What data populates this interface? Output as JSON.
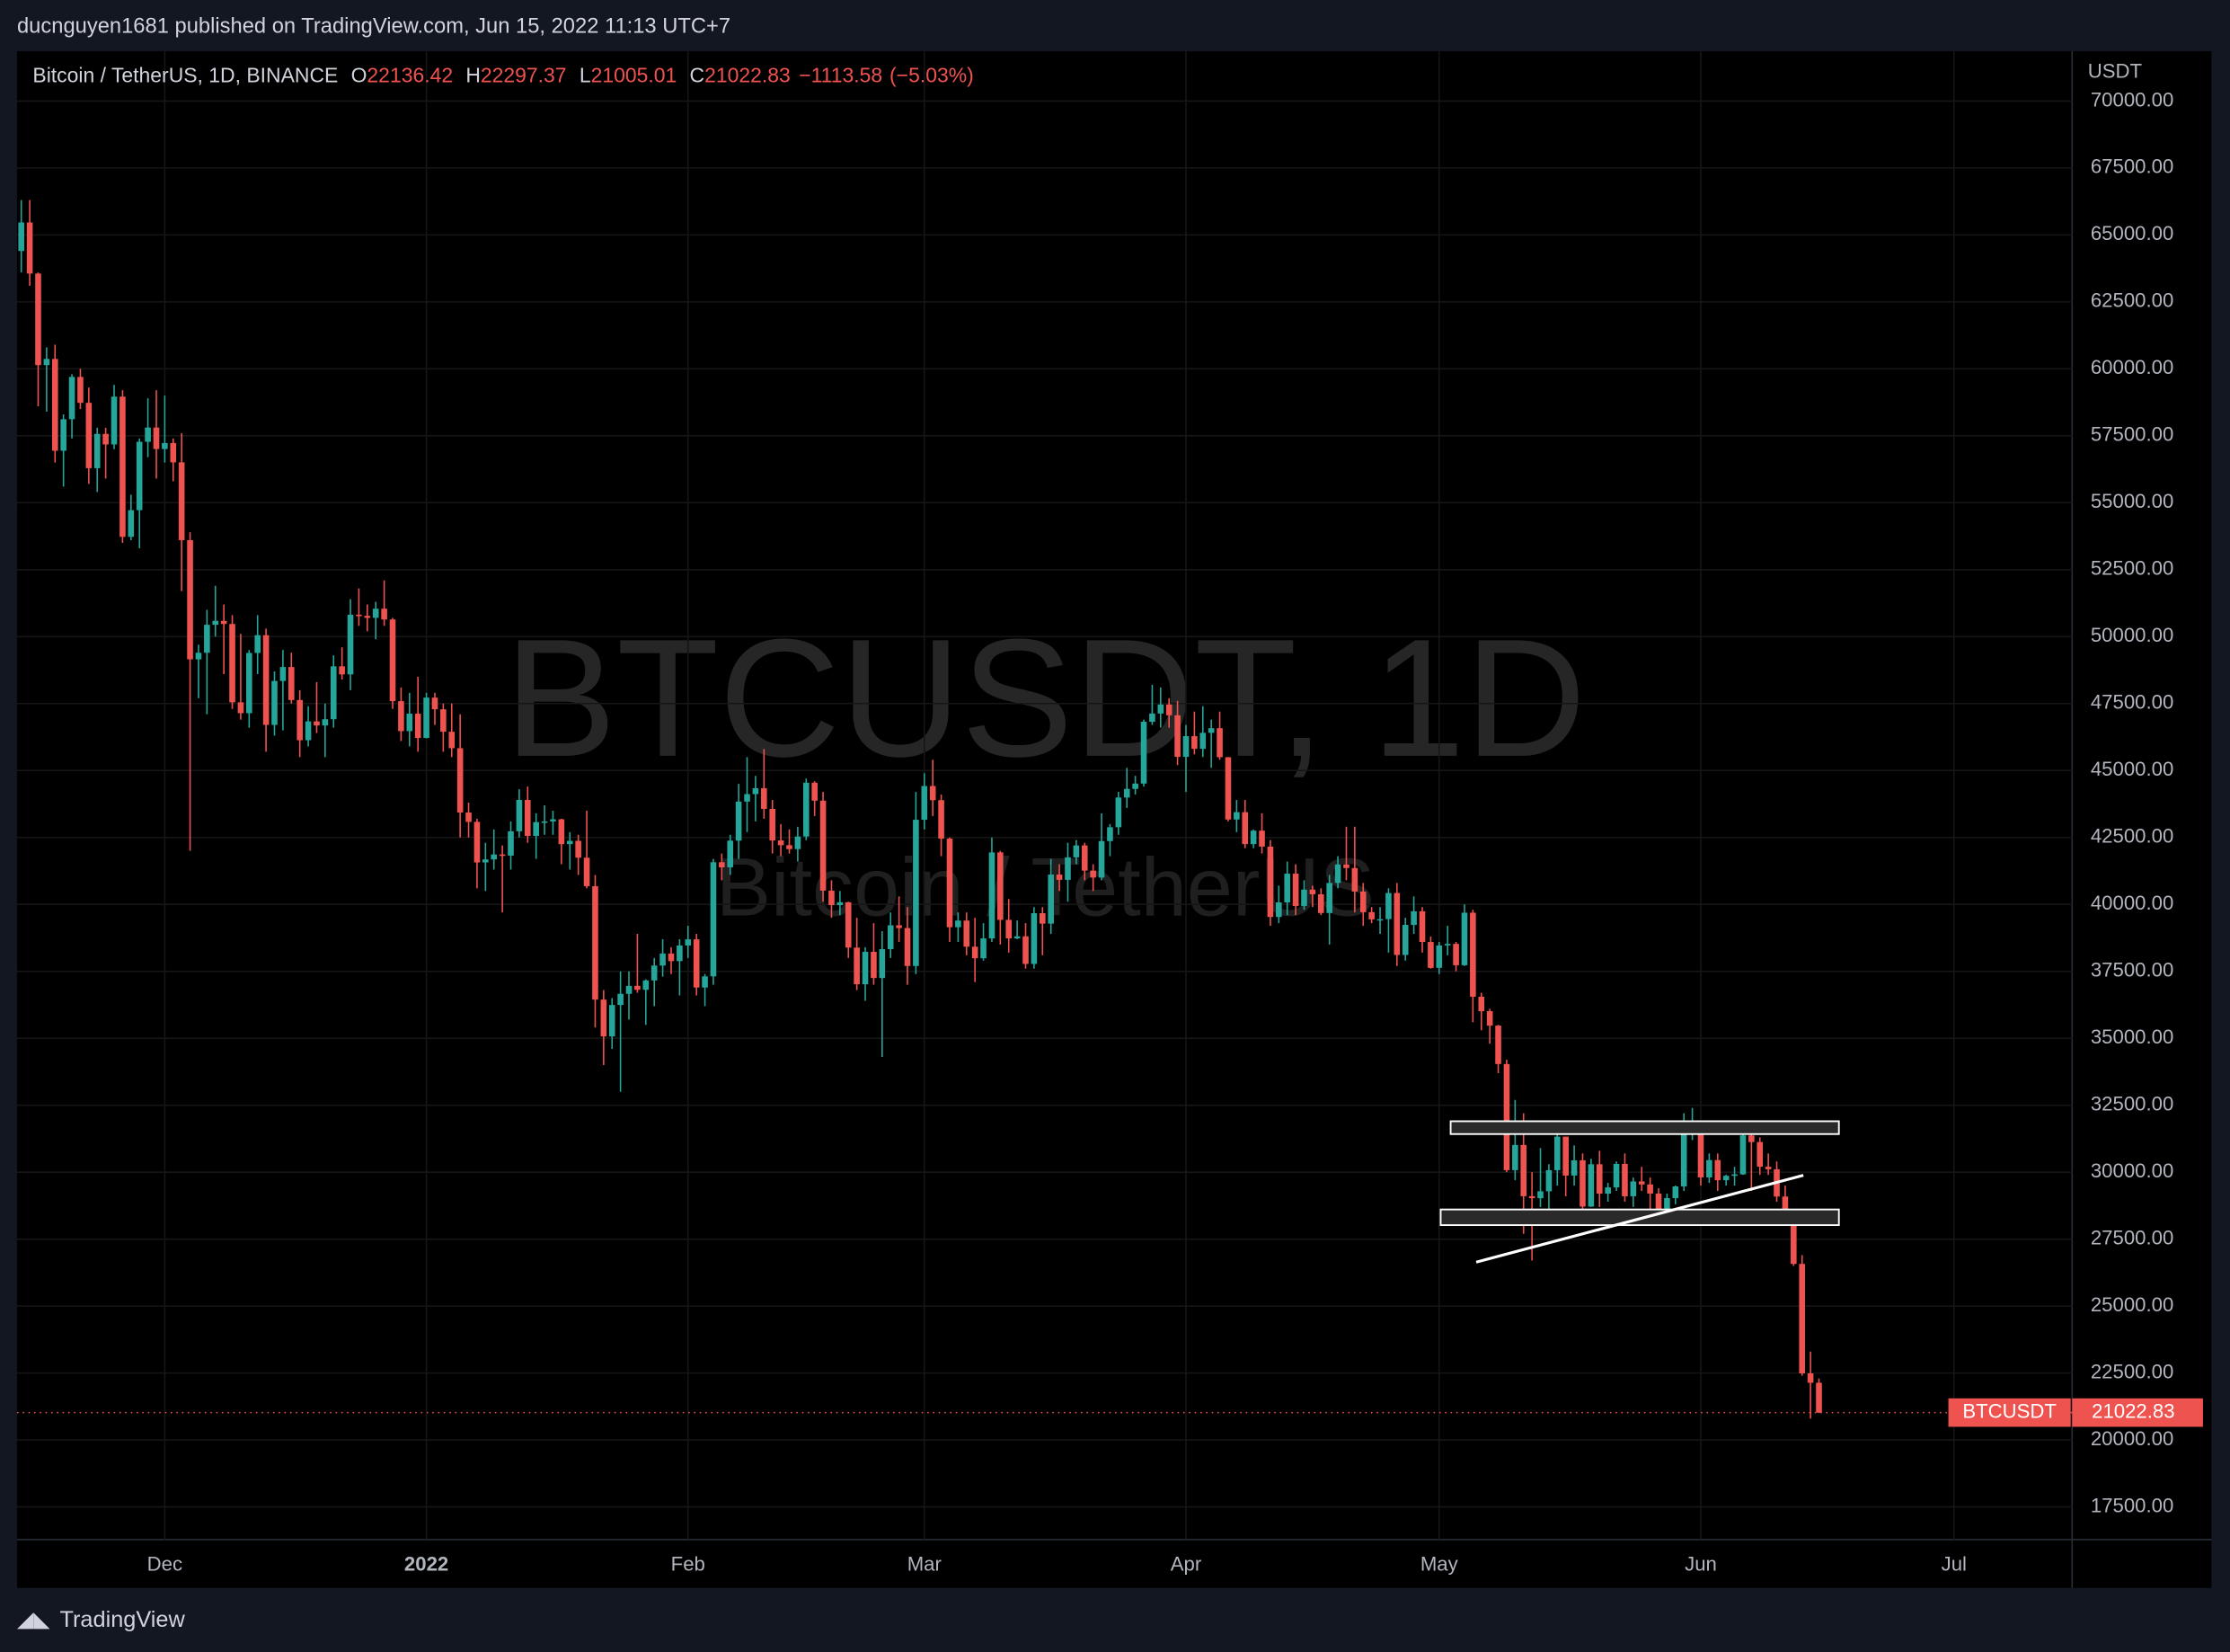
{
  "header": {
    "published": "ducnguyen1681 published on TradingView.com, Jun 15, 2022 11:13 UTC+7",
    "symbol": "Bitcoin / TetherUS, 1D, BINANCE",
    "ohlc_keys": [
      "O",
      "H",
      "L",
      "C"
    ],
    "change": "−1113.58",
    "change_pct": "(−5.03%)"
  },
  "footer": {
    "brand": "TradingView"
  },
  "chart_data": {
    "type": "candlestick",
    "watermark": "BTCUSDT, 1D",
    "watermark_sub": "Bitcoin / TetherUS",
    "y_unit": "USDT",
    "last_price_name": "BTCUSDT",
    "up_color": "#26a69a",
    "down_color": "#ef5350",
    "grid": true,
    "xlim": [
      -0.5,
      243
    ],
    "ylim": [
      16280,
      71860
    ],
    "xticks": [
      {
        "value": 17,
        "label": "Dec"
      },
      {
        "value": 48,
        "label": "2022"
      },
      {
        "value": 79,
        "label": "Feb"
      },
      {
        "value": 107,
        "label": "Mar"
      },
      {
        "value": 138,
        "label": "Apr"
      },
      {
        "value": 168,
        "label": "May"
      },
      {
        "value": 199,
        "label": "Jun"
      },
      {
        "value": 229,
        "label": "Jul"
      }
    ],
    "yticks": [
      {
        "value": 17500,
        "label": "17500.00"
      },
      {
        "value": 20000,
        "label": "20000.00"
      },
      {
        "value": 22500,
        "label": "22500.00"
      },
      {
        "value": 25000,
        "label": "25000.00"
      },
      {
        "value": 27500,
        "label": "27500.00"
      },
      {
        "value": 30000,
        "label": "30000.00"
      },
      {
        "value": 32500,
        "label": "32500.00"
      },
      {
        "value": 35000,
        "label": "35000.00"
      },
      {
        "value": 37500,
        "label": "37500.00"
      },
      {
        "value": 40000,
        "label": "40000.00"
      },
      {
        "value": 42500,
        "label": "42500.00"
      },
      {
        "value": 45000,
        "label": "45000.00"
      },
      {
        "value": 47500,
        "label": "47500.00"
      },
      {
        "value": 50000,
        "label": "50000.00"
      },
      {
        "value": 52500,
        "label": "52500.00"
      },
      {
        "value": 55000,
        "label": "55000.00"
      },
      {
        "value": 57500,
        "label": "57500.00"
      },
      {
        "value": 60000,
        "label": "60000.00"
      },
      {
        "value": 62500,
        "label": "62500.00"
      },
      {
        "value": 65000,
        "label": "65000.00"
      },
      {
        "value": 67500,
        "label": "67500.00"
      },
      {
        "value": 70000,
        "label": "70000.00"
      }
    ],
    "open": [
      64400,
      65466,
      63557,
      60139,
      60369,
      56942,
      58119,
      59697,
      58730,
      56289,
      57570,
      57177,
      58961,
      53726,
      54722,
      57275,
      57807,
      57006,
      57229,
      56508,
      53602,
      49152,
      49397,
      50442,
      50589,
      50472,
      47546,
      47140,
      49390,
      50053,
      46703,
      48343,
      48864,
      47632,
      46131,
      46834,
      46682,
      46914,
      48890,
      48589,
      50819,
      50776,
      50701,
      51042,
      50640,
      47589,
      46470,
      47122,
      46216,
      47722,
      47286,
      46446,
      45833,
      43432,
      43082,
      41567,
      41680,
      41864,
      41822,
      42730,
      43902,
      42558,
      43072,
      43098,
      43177,
      42251,
      42373,
      41744,
      40681,
      36445,
      35071,
      36244,
      36660,
      36958,
      36810,
      37160,
      37716,
      38166,
      37882,
      38466,
      38694,
      36896,
      37311,
      41575,
      41383,
      42381,
      43840,
      44118,
      44339,
      43566,
      42388,
      42210,
      42065,
      42535,
      44544,
      43874,
      40515,
      39974,
      40079,
      38387,
      37018,
      38230,
      37250,
      38328,
      39219,
      39116,
      37700,
      43160,
      44421,
      43892,
      42455,
      39148,
      39397,
      38420,
      37988,
      38730,
      41941,
      39422,
      38730,
      38808,
      37777,
      39671,
      39281,
      41114,
      40917,
      41757,
      42201,
      41262,
      41002,
      42364,
      42882,
      43991,
      44313,
      44512,
      46820,
      47128,
      47465,
      47062,
      45510,
      46283,
      45811,
      46407,
      46580,
      45497,
      43170,
      43444,
      42252,
      42753,
      42158,
      39530,
      40074,
      41147,
      39942,
      40552,
      40378,
      39678,
      40801,
      41493,
      41358,
      40480,
      39709,
      39441,
      39450,
      40426,
      38112,
      39235,
      39742,
      38596,
      37630,
      38468,
      38525,
      37728,
      39690,
      36552,
      36013,
      35472,
      34039,
      30076,
      31017,
      29103,
      29029,
      29287,
      30075,
      31328,
      29874,
      30444,
      28716,
      30296,
      29198,
      29432,
      30309,
      29101,
      29655,
      29543,
      29202,
      28629,
      29032,
      29468,
      31734,
      31801,
      29805,
      30452,
      29700,
      29864,
      29919,
      31373,
      31125,
      30204,
      30109,
      29091,
      28424,
      26575,
      22487,
      22136.42
    ],
    "high": [
      66300,
      66300,
      63600,
      60800,
      60900,
      58300,
      59800,
      60000,
      59300,
      57800,
      57800,
      59400,
      59200,
      55300,
      57400,
      58900,
      59200,
      59000,
      57400,
      57600,
      53900,
      49700,
      51000,
      51900,
      51200,
      50800,
      50100,
      49500,
      50800,
      50300,
      48700,
      49500,
      49400,
      48000,
      47400,
      48300,
      47500,
      49300,
      49600,
      51400,
      51800,
      51200,
      51300,
      52100,
      50700,
      48100,
      47900,
      48500,
      47900,
      47900,
      47500,
      47500,
      47100,
      43800,
      43200,
      42300,
      42800,
      42200,
      43100,
      44300,
      44400,
      43400,
      43700,
      43500,
      43200,
      42700,
      42600,
      43500,
      41100,
      36800,
      36500,
      37500,
      37500,
      38900,
      37200,
      38000,
      38700,
      38400,
      38700,
      39200,
      38900,
      37400,
      41700,
      41900,
      42600,
      44500,
      45500,
      44800,
      45800,
      43900,
      43000,
      42800,
      42900,
      44700,
      44600,
      44200,
      40900,
      40500,
      40100,
      39500,
      38400,
      39300,
      39000,
      39700,
      40300,
      39900,
      44200,
      44900,
      45400,
      44100,
      42500,
      39700,
      39700,
      39500,
      39300,
      42500,
      42000,
      40200,
      39400,
      39300,
      39900,
      39900,
      41700,
      41500,
      42300,
      42400,
      42300,
      41500,
      43400,
      43000,
      44200,
      45100,
      44800,
      46900,
      48200,
      48100,
      47700,
      47600,
      46700,
      47200,
      47400,
      46900,
      47200,
      45500,
      43900,
      43900,
      42800,
      43400,
      42400,
      40700,
      41600,
      41500,
      40900,
      40700,
      40600,
      41100,
      41800,
      42900,
      42900,
      40800,
      39900,
      39900,
      40600,
      40800,
      39500,
      40300,
      39900,
      38800,
      38600,
      39200,
      38600,
      40000,
      39800,
      36700,
      36100,
      35500,
      34200,
      32700,
      32200,
      30000,
      30900,
      30300,
      31400,
      31300,
      31000,
      30700,
      30500,
      30800,
      29600,
      30400,
      30700,
      29800,
      30200,
      29800,
      29400,
      29200,
      29500,
      32200,
      32400,
      31900,
      30700,
      30700,
      29900,
      30200,
      31800,
      31600,
      31300,
      30700,
      30400,
      29500,
      28600,
      26900,
      23300,
      22297.37
    ],
    "low": [
      63600,
      63100,
      58600,
      58400,
      56500,
      55600,
      57400,
      58500,
      55700,
      55400,
      55900,
      57000,
      53500,
      53600,
      53300,
      56700,
      55900,
      56500,
      55800,
      51700,
      42000,
      47700,
      47100,
      50000,
      48600,
      47300,
      46900,
      46600,
      48600,
      45700,
      46300,
      46500,
      47500,
      45500,
      45900,
      46400,
      45500,
      46600,
      48400,
      48000,
      50400,
      50200,
      49900,
      50400,
      47300,
      46100,
      45900,
      45700,
      46200,
      46700,
      45700,
      45500,
      42500,
      42500,
      40600,
      40500,
      41300,
      39700,
      41300,
      42500,
      42300,
      41700,
      42600,
      42600,
      41500,
      41300,
      41100,
      40600,
      35400,
      34000,
      34600,
      33000,
      35700,
      36700,
      35500,
      36200,
      37300,
      37400,
      36600,
      38000,
      36600,
      36200,
      37000,
      40900,
      41100,
      41700,
      42700,
      43100,
      43200,
      41900,
      41800,
      41900,
      41600,
      42400,
      43300,
      40100,
      39500,
      39600,
      38000,
      36800,
      36400,
      37000,
      34300,
      38000,
      38600,
      37000,
      37400,
      42800,
      43300,
      41800,
      38600,
      38600,
      38100,
      37100,
      37900,
      38600,
      38500,
      38200,
      38700,
      37600,
      37600,
      38100,
      38900,
      40500,
      40100,
      41500,
      40900,
      40500,
      40900,
      41800,
      42600,
      43600,
      44100,
      44400,
      46700,
      46600,
      46600,
      45200,
      44200,
      45600,
      45500,
      45100,
      45400,
      43100,
      42700,
      42100,
      42100,
      41900,
      39200,
      39300,
      39600,
      39600,
      39800,
      39900,
      39600,
      38500,
      40600,
      40900,
      39700,
      39200,
      39300,
      38900,
      38200,
      37700,
      37900,
      38900,
      38200,
      37600,
      37400,
      38100,
      37500,
      37700,
      35600,
      35300,
      34800,
      33700,
      30000,
      29700,
      27700,
      26700,
      28700,
      28600,
      29500,
      29100,
      29500,
      28600,
      28700,
      28700,
      28900,
      29300,
      28900,
      28700,
      29300,
      28000,
      28200,
      28500,
      28800,
      29300,
      31200,
      29500,
      29600,
      29300,
      29500,
      29500,
      29900,
      29300,
      29900,
      29900,
      28900,
      28100,
      26500,
      22400,
      20800,
      21005.01
    ],
    "close": [
      65466,
      63557,
      60139,
      60369,
      56942,
      58119,
      59697,
      58730,
      56289,
      57570,
      57177,
      58961,
      53726,
      54722,
      57275,
      57807,
      57006,
      57229,
      56508,
      53602,
      49152,
      49397,
      50442,
      50589,
      50472,
      47546,
      47140,
      49390,
      50053,
      46703,
      48343,
      48864,
      47632,
      46131,
      46834,
      46682,
      46914,
      48890,
      48589,
      50819,
      50776,
      50701,
      51042,
      50640,
      47589,
      46470,
      47122,
      46216,
      47722,
      47286,
      46446,
      45833,
      43432,
      43082,
      41567,
      41680,
      41864,
      41822,
      42730,
      43902,
      42558,
      43072,
      43098,
      43177,
      42251,
      42373,
      41744,
      40681,
      36445,
      35071,
      36244,
      36660,
      36958,
      36810,
      37160,
      37716,
      38166,
      37882,
      38466,
      38694,
      36896,
      37311,
      41575,
      41383,
      42381,
      43840,
      44118,
      44339,
      43566,
      42388,
      42210,
      42065,
      42535,
      44544,
      43874,
      40515,
      39974,
      40079,
      38387,
      37018,
      38230,
      37250,
      38328,
      39219,
      39116,
      37700,
      43160,
      44421,
      43892,
      42455,
      39148,
      39397,
      38420,
      37988,
      38730,
      41941,
      39422,
      38730,
      38808,
      37777,
      39671,
      39281,
      41114,
      40917,
      41757,
      42201,
      41262,
      41002,
      42364,
      42882,
      43991,
      44313,
      44512,
      46820,
      47128,
      47465,
      47062,
      45510,
      46283,
      45811,
      46407,
      46580,
      45497,
      43170,
      43444,
      42252,
      42753,
      42158,
      39530,
      40074,
      41147,
      39942,
      40552,
      40378,
      39678,
      40801,
      41493,
      41358,
      40480,
      39709,
      39441,
      39450,
      40426,
      38112,
      39235,
      39742,
      38596,
      37630,
      38468,
      38525,
      37728,
      39690,
      36552,
      36013,
      35472,
      34039,
      30076,
      31017,
      29103,
      29029,
      29287,
      30075,
      31328,
      29874,
      30444,
      28716,
      30296,
      29198,
      29432,
      30309,
      29101,
      29655,
      29543,
      29202,
      28629,
      29032,
      29468,
      31734,
      31801,
      29805,
      30452,
      29700,
      29864,
      29919,
      31373,
      31125,
      30204,
      30109,
      29091,
      28424,
      26575,
      22487,
      22136.42,
      21022.83
    ]
  }
}
